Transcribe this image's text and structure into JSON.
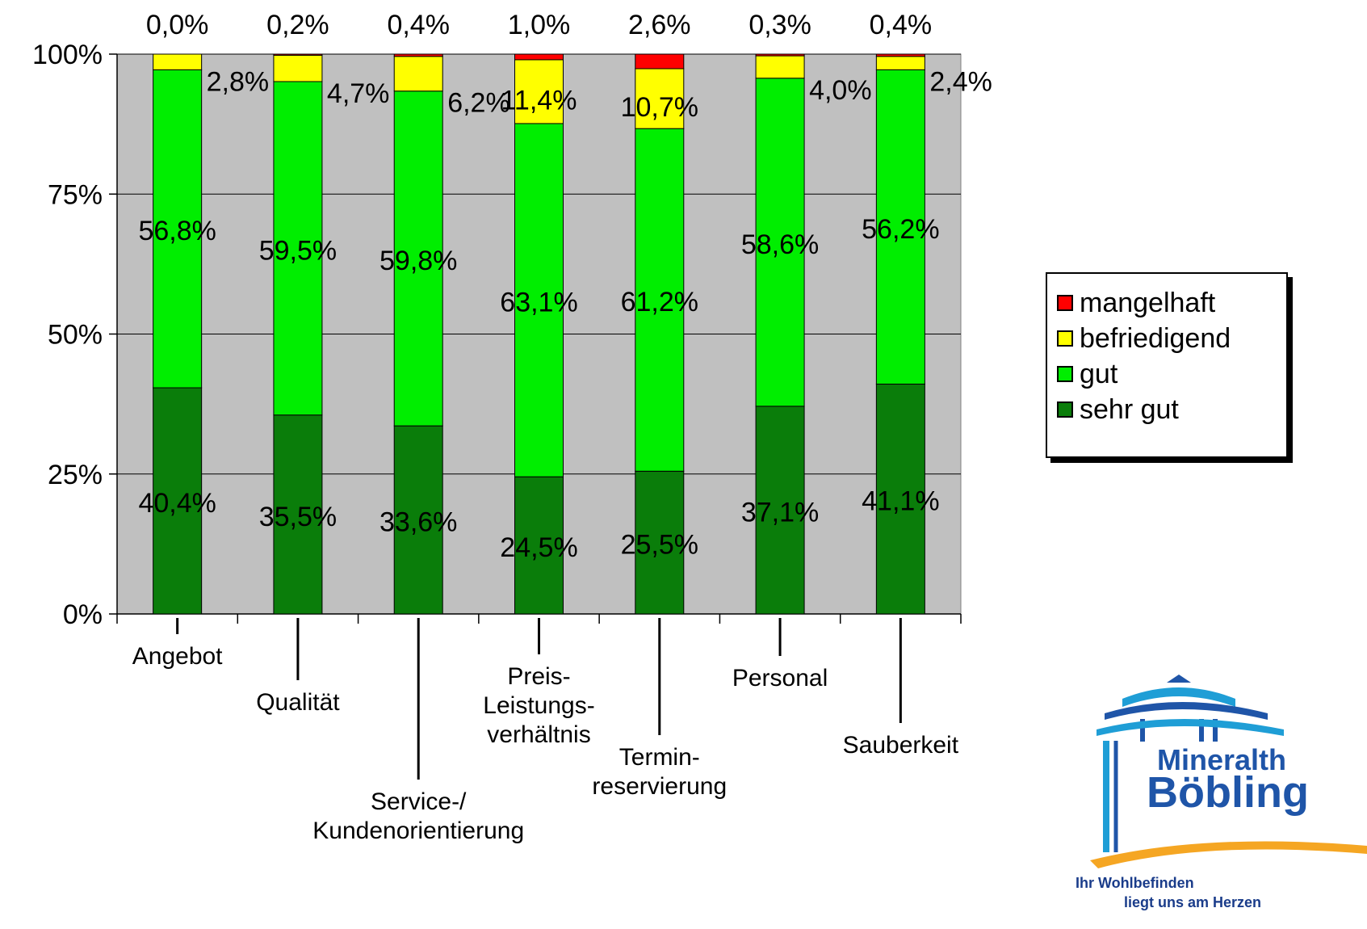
{
  "chart_data": {
    "type": "bar",
    "stacked": true,
    "normalized": true,
    "categories": [
      "Angebot",
      "Qualität",
      "Service-/\nKundenorientierung",
      "Preis-\nLeistungs-\nverhältnis",
      "Termin-\nreservierung",
      "Personal",
      "Sauberkeit"
    ],
    "y_ticks": [
      "0%",
      "25%",
      "50%",
      "75%",
      "100%"
    ],
    "ylim": [
      0,
      100
    ],
    "grid": true,
    "legend_position": "right",
    "series": [
      {
        "name": "sehr gut",
        "color": "#0a7d0a",
        "values": [
          40.4,
          35.5,
          33.6,
          24.5,
          25.5,
          37.1,
          41.1
        ],
        "labels": [
          "40,4%",
          "35,5%",
          "33,6%",
          "24,5%",
          "25,5%",
          "37,1%",
          "41,1%"
        ]
      },
      {
        "name": "gut",
        "color": "#00ee00",
        "values": [
          56.8,
          59.5,
          59.8,
          63.1,
          61.2,
          58.6,
          56.2
        ],
        "labels": [
          "56,8%",
          "59,5%",
          "59,8%",
          "63,1%",
          "61,2%",
          "58,6%",
          "56,2%"
        ]
      },
      {
        "name": "befriedigend",
        "color": "#ffff00",
        "values": [
          2.8,
          4.7,
          6.2,
          11.4,
          10.7,
          4.0,
          2.4
        ],
        "labels": [
          "2,8%",
          "4,7%",
          "6,2%",
          "11,4%",
          "10,7%",
          "4,0%",
          "2,4%"
        ]
      },
      {
        "name": "mangelhaft",
        "color": "#ff0000",
        "values": [
          0.0,
          0.2,
          0.4,
          1.0,
          2.6,
          0.3,
          0.4
        ],
        "labels": [
          "0,0%",
          "0,2%",
          "0,4%",
          "1,0%",
          "2,6%",
          "0,3%",
          "0,4%"
        ]
      }
    ]
  },
  "logo": {
    "line1": "Mineralth",
    "line2": "Böbling",
    "slogan_line1": "Ihr Wohlbefinden",
    "slogan_line2": "liegt uns am Herzen"
  }
}
